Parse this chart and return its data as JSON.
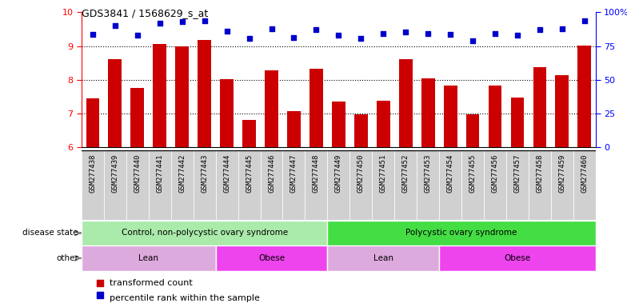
{
  "title": "GDS3841 / 1568629_s_at",
  "samples": [
    "GSM277438",
    "GSM277439",
    "GSM277440",
    "GSM277441",
    "GSM277442",
    "GSM277443",
    "GSM277444",
    "GSM277445",
    "GSM277446",
    "GSM277447",
    "GSM277448",
    "GSM277449",
    "GSM277450",
    "GSM277451",
    "GSM277452",
    "GSM277453",
    "GSM277454",
    "GSM277455",
    "GSM277456",
    "GSM277457",
    "GSM277458",
    "GSM277459",
    "GSM277460"
  ],
  "bar_values": [
    7.45,
    8.6,
    7.75,
    9.05,
    8.98,
    9.18,
    8.02,
    6.82,
    8.27,
    7.08,
    8.32,
    7.35,
    6.97,
    7.38,
    8.62,
    8.05,
    7.82,
    6.98,
    7.82,
    7.48,
    8.38,
    8.15,
    9.02
  ],
  "percentile_values": [
    9.35,
    9.6,
    9.32,
    9.68,
    9.72,
    9.75,
    9.45,
    9.23,
    9.52,
    9.25,
    9.48,
    9.32,
    9.22,
    9.38,
    9.42,
    9.38,
    9.35,
    9.15,
    9.38,
    9.32,
    9.48,
    9.52,
    9.75
  ],
  "ylim_left": [
    6,
    10
  ],
  "yticks_left": [
    6,
    7,
    8,
    9,
    10
  ],
  "bar_color": "#cc0000",
  "dot_color": "#0000cc",
  "plot_bg_color": "#ffffff",
  "tick_box_color": "#d0d0d0",
  "disease_state_groups": [
    {
      "label": "Control, non-polycystic ovary syndrome",
      "start": 0,
      "end": 11,
      "color": "#aaeaaa"
    },
    {
      "label": "Polycystic ovary syndrome",
      "start": 11,
      "end": 23,
      "color": "#44dd44"
    }
  ],
  "other_groups": [
    {
      "label": "Lean",
      "start": 0,
      "end": 6,
      "color": "#ddaadd"
    },
    {
      "label": "Obese",
      "start": 6,
      "end": 11,
      "color": "#ee44ee"
    },
    {
      "label": "Lean",
      "start": 11,
      "end": 16,
      "color": "#ddaadd"
    },
    {
      "label": "Obese",
      "start": 16,
      "end": 23,
      "color": "#ee44ee"
    }
  ],
  "legend_bar_label": "transformed count",
  "legend_dot_label": "percentile rank within the sample",
  "disease_state_label": "disease state",
  "other_label": "other"
}
